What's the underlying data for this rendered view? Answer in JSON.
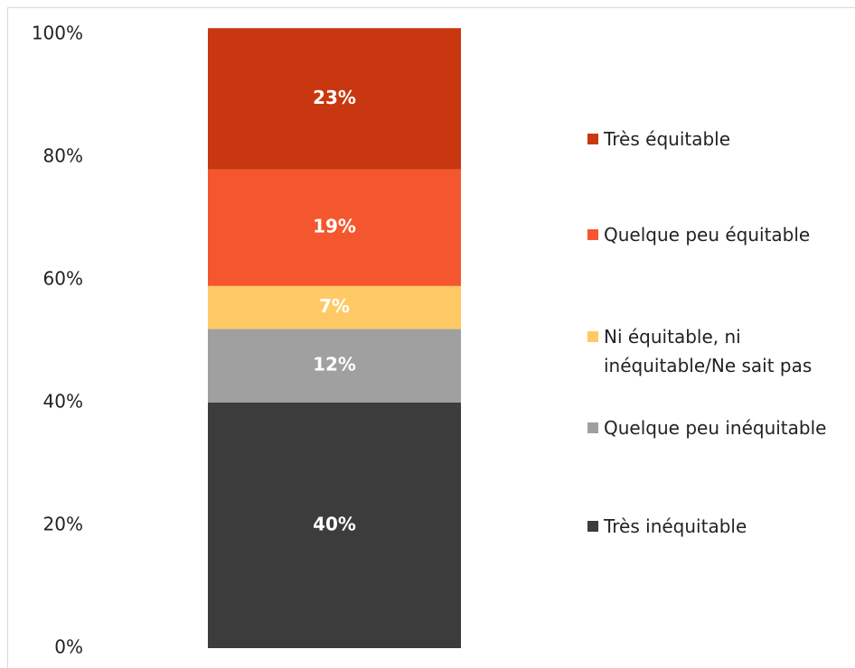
{
  "chart_data": {
    "type": "stacked_bar",
    "categories": [
      null
    ],
    "series": [
      {
        "name": "Très inéquitable",
        "color": "#3c3c3c",
        "values": [
          40
        ],
        "value_labels": [
          "40%"
        ]
      },
      {
        "name": "Quelque peu inéquitable",
        "color": "#a0a0a0",
        "values": [
          12
        ],
        "value_labels": [
          "12%"
        ]
      },
      {
        "name": "Ni équitable, ni inéquitable/Ne sait pas",
        "color": "#ffc966",
        "values": [
          7
        ],
        "value_labels": [
          "7%"
        ]
      },
      {
        "name": "Quelque peu équitable",
        "color": "#f4572d",
        "values": [
          19
        ],
        "value_labels": [
          "19%"
        ]
      },
      {
        "name": "Très équitable",
        "color": "#c8370f",
        "values": [
          23
        ],
        "value_labels": [
          "23%"
        ]
      }
    ],
    "ylim": [
      0,
      100
    ],
    "yticks": [
      {
        "value": 0,
        "label": "0%"
      },
      {
        "value": 20,
        "label": "20%"
      },
      {
        "value": 40,
        "label": "40%"
      },
      {
        "value": 60,
        "label": "60%"
      },
      {
        "value": 80,
        "label": "80%"
      },
      {
        "value": 100,
        "label": "100%"
      }
    ],
    "grid": false
  }
}
